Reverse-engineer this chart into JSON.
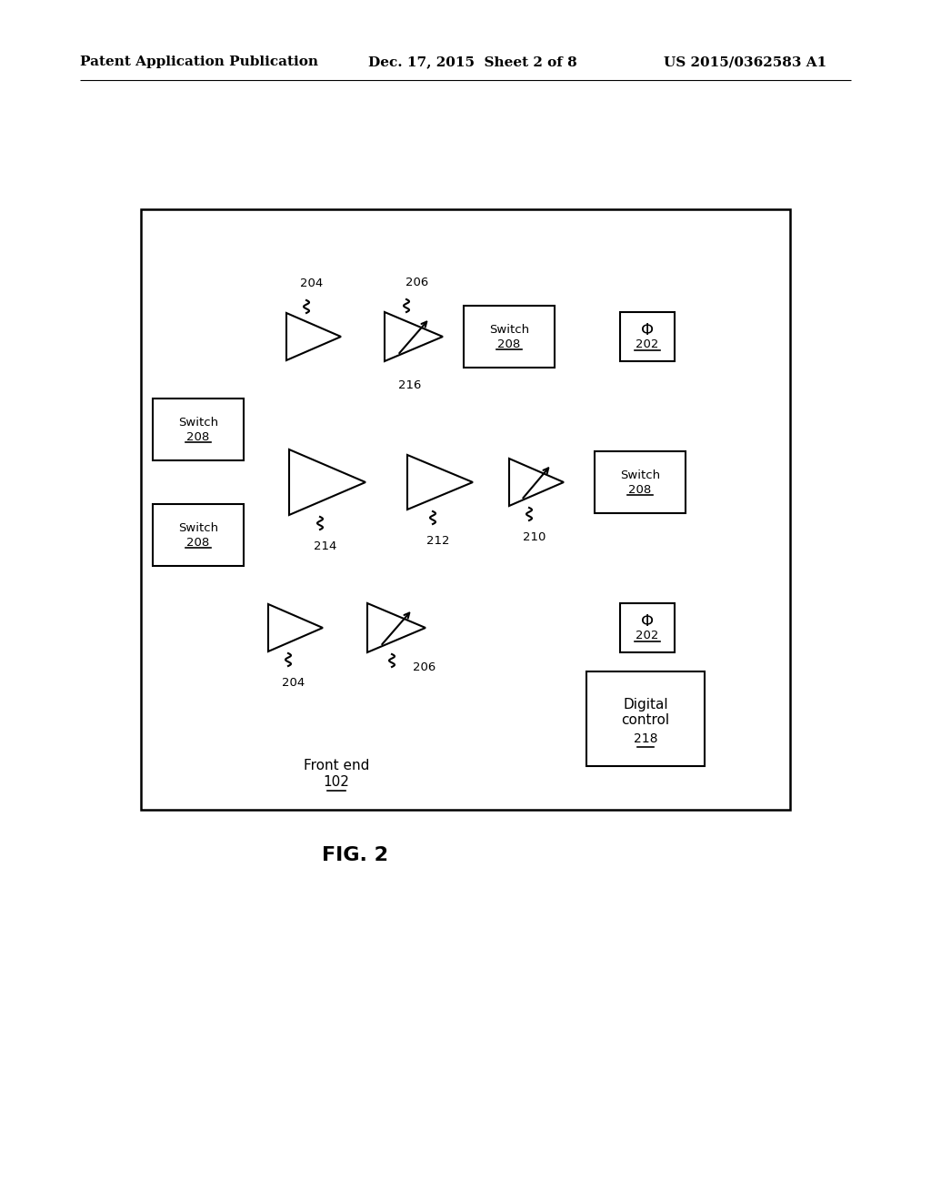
{
  "bg_color": "#ffffff",
  "header_left": "Patent Application Publication",
  "header_mid": "Dec. 17, 2015  Sheet 2 of 8",
  "header_right": "US 2015/0362583 A1",
  "fig_label": "FIG. 2",
  "front_end_label": "Front end",
  "front_end_num": "102",
  "digital_control_line1": "Digital",
  "digital_control_line2": "control",
  "digital_control_num": "218",
  "line_color": "#000000"
}
